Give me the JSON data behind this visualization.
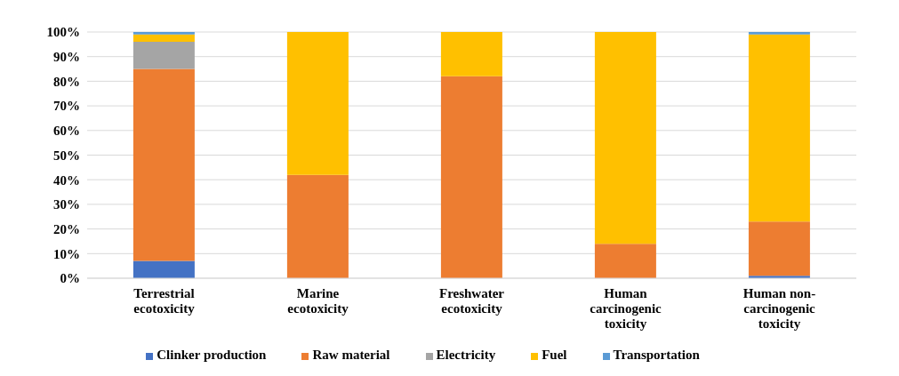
{
  "chart_data": {
    "type": "bar",
    "stacked": true,
    "categories": [
      "Terrestrial ecotoxicity",
      "Marine ecotoxicity",
      "Freshwater ecotoxicity",
      "Human carcinogenic toxicity",
      "Human non-carcinogenic toxicity"
    ],
    "series": [
      {
        "name": "Clinker production",
        "color": "#4472c4",
        "values": [
          7,
          0,
          0,
          0,
          1
        ]
      },
      {
        "name": "Raw material",
        "color": "#ed7d31",
        "values": [
          78,
          42,
          82,
          14,
          22
        ]
      },
      {
        "name": "Electricity",
        "color": "#a5a5a5",
        "values": [
          11,
          0,
          0,
          0,
          0
        ]
      },
      {
        "name": "Fuel",
        "color": "#ffc000",
        "values": [
          3,
          58,
          18,
          86,
          76
        ]
      },
      {
        "name": "Transportation",
        "color": "#5b9bd5",
        "values": [
          1,
          0,
          0,
          0,
          1
        ]
      }
    ],
    "ylim": [
      0,
      100
    ],
    "yticks": [
      {
        "value": 0,
        "label": "0%"
      },
      {
        "value": 10,
        "label": "10%"
      },
      {
        "value": 20,
        "label": "20%"
      },
      {
        "value": 30,
        "label": "30%"
      },
      {
        "value": 40,
        "label": "40%"
      },
      {
        "value": 50,
        "label": "50%"
      },
      {
        "value": 60,
        "label": "60%"
      },
      {
        "value": 70,
        "label": "70%"
      },
      {
        "value": 80,
        "label": "80%"
      },
      {
        "value": 90,
        "label": "90%"
      },
      {
        "value": 100,
        "label": "100%"
      }
    ],
    "grid": "y",
    "legend": "bottom"
  }
}
